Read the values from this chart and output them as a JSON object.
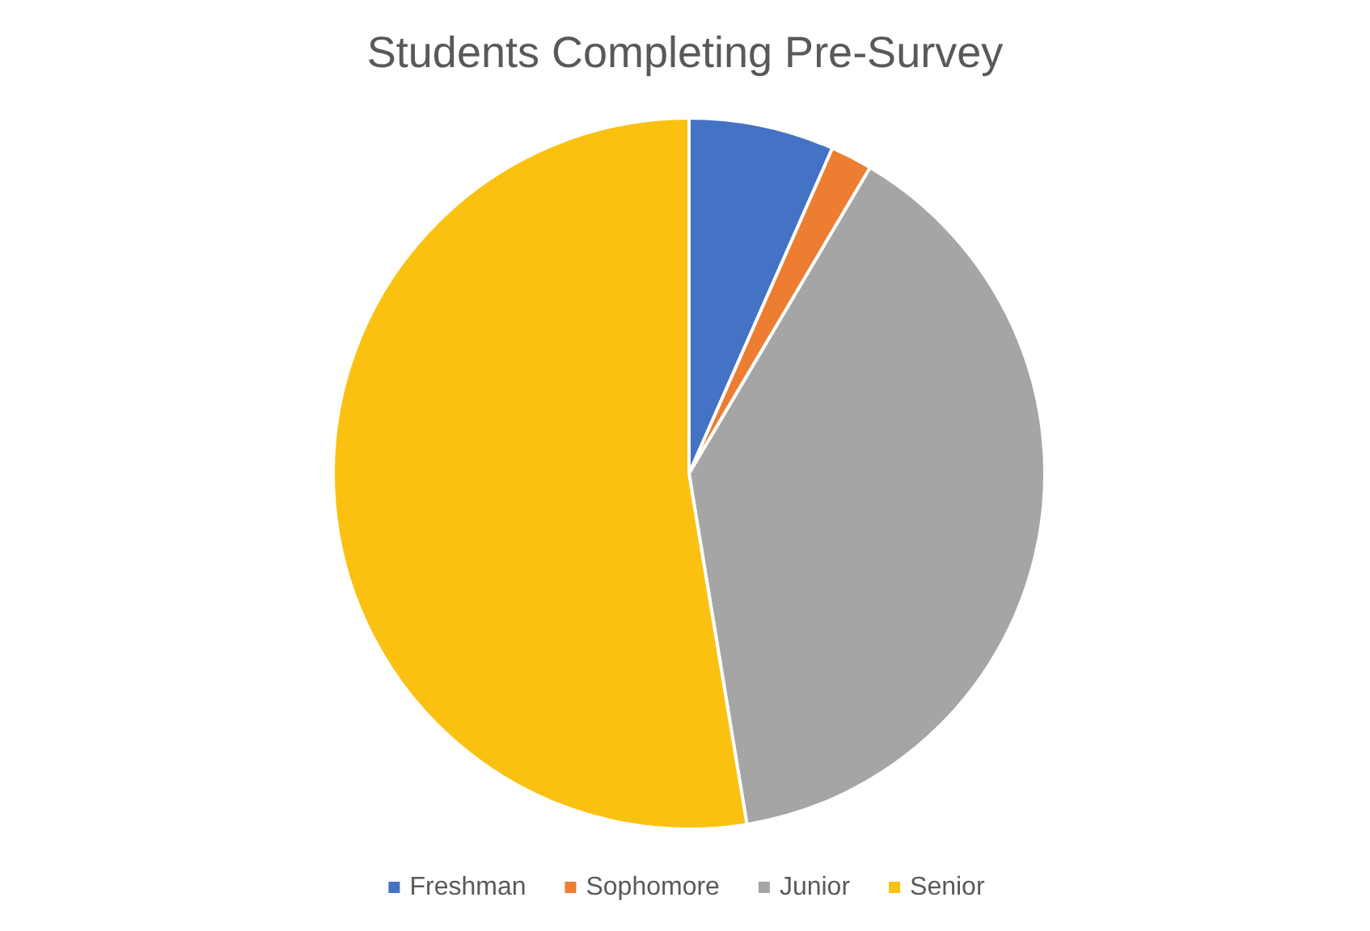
{
  "chart_data": {
    "type": "pie",
    "title": "Students Completing Pre-Survey",
    "categories": [
      "Freshman",
      "Sophomore",
      "Junior",
      "Senior"
    ],
    "values": [
      6.6,
      1.9,
      38.9,
      52.6
    ],
    "colors": [
      "#4472c4",
      "#ed7d31",
      "#a5a5a5",
      "#fbc111"
    ],
    "legend": "bottom"
  }
}
